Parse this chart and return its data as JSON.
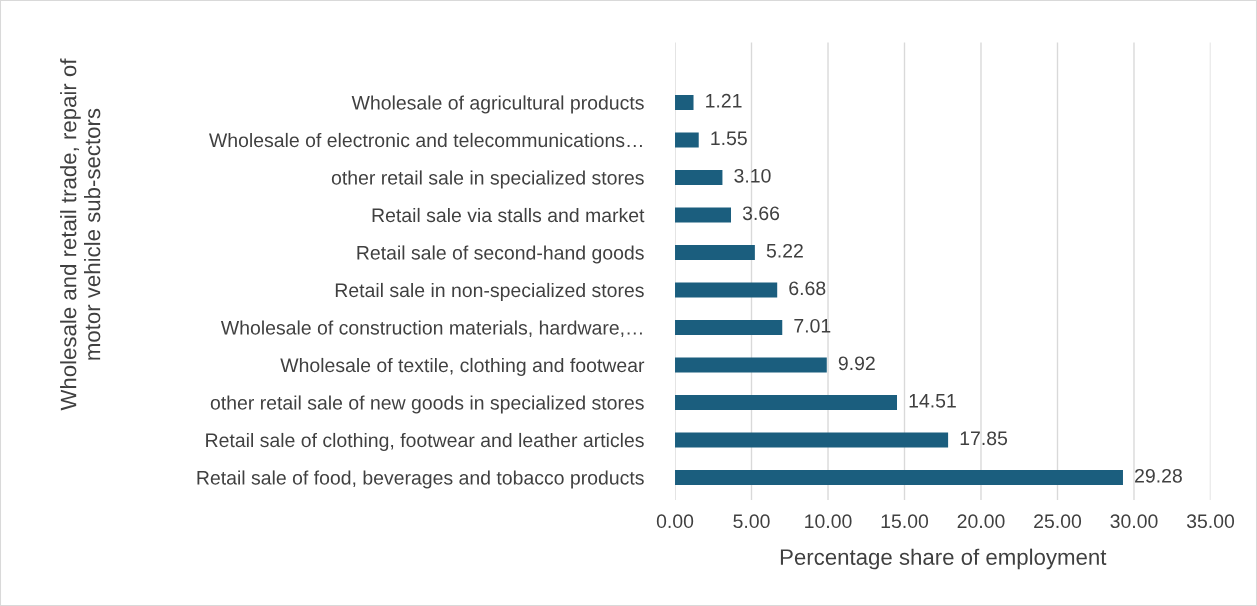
{
  "chart_data": {
    "type": "bar",
    "orientation": "horizontal",
    "categories": [
      "Wholesale of agricultural products",
      "Wholesale of electronic and telecommunications…",
      "other retail sale in specialized stores",
      "Retail sale via stalls and market",
      "Retail sale of second-hand goods",
      "Retail sale in non-specialized stores",
      "Wholesale of construction materials, hardware,…",
      "Wholesale of textile, clothing and footwear",
      "other retail sale of new goods in specialized stores",
      "Retail sale of clothing, footwear and leather articles",
      "Retail sale of food, beverages and tobacco products"
    ],
    "values": [
      1.21,
      1.55,
      3.1,
      3.66,
      5.22,
      6.68,
      7.01,
      9.92,
      14.51,
      17.85,
      29.28
    ],
    "value_labels": [
      "1.21",
      "1.55",
      "3.10",
      "3.66",
      "5.22",
      "6.68",
      "7.01",
      "9.92",
      "14.51",
      "17.85",
      "29.28"
    ],
    "color": "#1b5e7e",
    "xlabel": "Percentage share of employment",
    "ylabel": "Wholesale and retail trade, repair of\nmotor vehicle sub-sectors",
    "xlim": [
      0,
      35
    ],
    "xticks": [
      {
        "value": 0,
        "label": "0.00"
      },
      {
        "value": 5,
        "label": "5.00"
      },
      {
        "value": 10,
        "label": "10.00"
      },
      {
        "value": 15,
        "label": "15.00"
      },
      {
        "value": 20,
        "label": "20.00"
      },
      {
        "value": 25,
        "label": "25.00"
      },
      {
        "value": 30,
        "label": "30.00"
      },
      {
        "value": 35,
        "label": "35.00"
      }
    ],
    "grid": "x"
  }
}
